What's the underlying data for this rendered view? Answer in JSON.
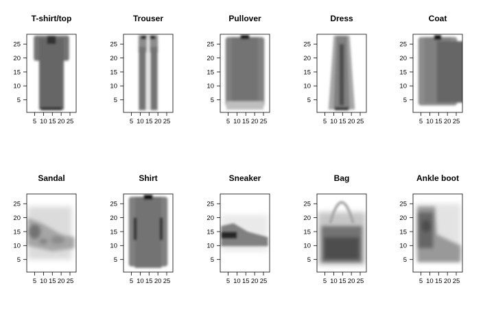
{
  "chart_data": {
    "type": "heatmap",
    "layout": {
      "rows": 2,
      "columns": 5
    },
    "x_ticks": [
      5,
      10,
      15,
      20,
      25
    ],
    "y_ticks": [
      5,
      10,
      15,
      20,
      25
    ],
    "xlim": [
      0.5,
      28.5
    ],
    "ylim": [
      0.5,
      28.5
    ],
    "colormap": {
      "low": "#ffffff",
      "high": "#000000"
    },
    "panels": [
      {
        "title": "T-shirt/top",
        "shape": "tshirt"
      },
      {
        "title": "Trouser",
        "shape": "trouser"
      },
      {
        "title": "Pullover",
        "shape": "pullover"
      },
      {
        "title": "Dress",
        "shape": "dress"
      },
      {
        "title": "Coat",
        "shape": "coat"
      },
      {
        "title": "Sandal",
        "shape": "sandal"
      },
      {
        "title": "Shirt",
        "shape": "shirt"
      },
      {
        "title": "Sneaker",
        "shape": "sneaker"
      },
      {
        "title": "Bag",
        "shape": "bag"
      },
      {
        "title": "Ankle boot",
        "shape": "boot"
      }
    ]
  }
}
